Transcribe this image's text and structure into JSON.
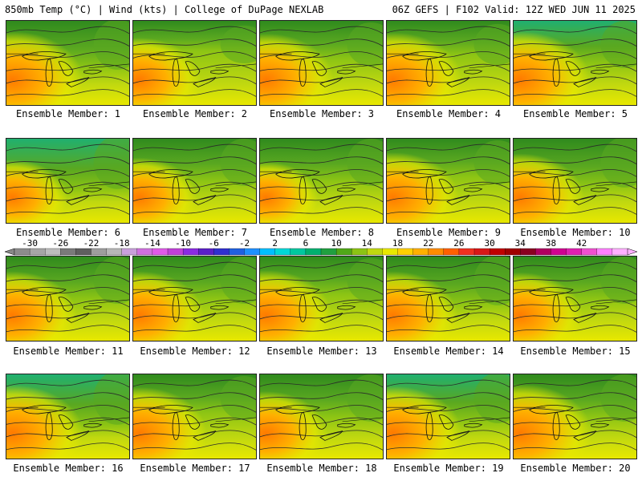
{
  "header": {
    "left": "850mb Temp (°C) | Wind (kts) | College of DuPage NEXLAB",
    "right": "06Z GEFS | F102 Valid: 12Z WED JUN 11 2025"
  },
  "members": [
    "Ensemble Member: 1",
    "Ensemble Member: 2",
    "Ensemble Member: 3",
    "Ensemble Member: 4",
    "Ensemble Member: 5",
    "Ensemble Member: 6",
    "Ensemble Member: 7",
    "Ensemble Member: 8",
    "Ensemble Member: 9",
    "Ensemble Member: 10",
    "Ensemble Member: 11",
    "Ensemble Member: 12",
    "Ensemble Member: 13",
    "Ensemble Member: 14",
    "Ensemble Member: 15",
    "Ensemble Member: 16",
    "Ensemble Member: 17",
    "Ensemble Member: 18",
    "Ensemble Member: 19",
    "Ensemble Member: 20"
  ],
  "colorbar": {
    "labels": [
      "-30",
      "-26",
      "-22",
      "-18",
      "-14",
      "-10",
      "-6",
      "-2",
      "2",
      "6",
      "10",
      "14",
      "18",
      "22",
      "26",
      "30",
      "34",
      "38",
      "42"
    ],
    "colors": [
      "#8c8c8c",
      "#a6a6a6",
      "#bdbdbd",
      "#7a7a7a",
      "#5f5f5f",
      "#9e9e9e",
      "#b7b7b7",
      "#c9a0dc",
      "#d070e0",
      "#e05ae8",
      "#c040d8",
      "#8a2be2",
      "#5a20c8",
      "#3030d0",
      "#2060e0",
      "#1e90ff",
      "#00bfff",
      "#00d8d8",
      "#00c8a0",
      "#00b070",
      "#20a040",
      "#50a818",
      "#8cc414",
      "#c0d810",
      "#e8e800",
      "#ffd000",
      "#ffb000",
      "#ff8c00",
      "#ff6000",
      "#f03020",
      "#d81818",
      "#c00000",
      "#a00000",
      "#8a0020",
      "#b00060",
      "#d00090",
      "#e020b0",
      "#f050d0",
      "#ff80ff",
      "#ffb0ff"
    ]
  },
  "colors": {
    "deep_green": "#2f8a1e",
    "green": "#5aa820",
    "light_green": "#8cc414",
    "yellow_green": "#c0d810",
    "yellow": "#e8e800",
    "orange": "#ffb000",
    "dark_orange": "#ff7a00",
    "teal": "#20b070"
  }
}
